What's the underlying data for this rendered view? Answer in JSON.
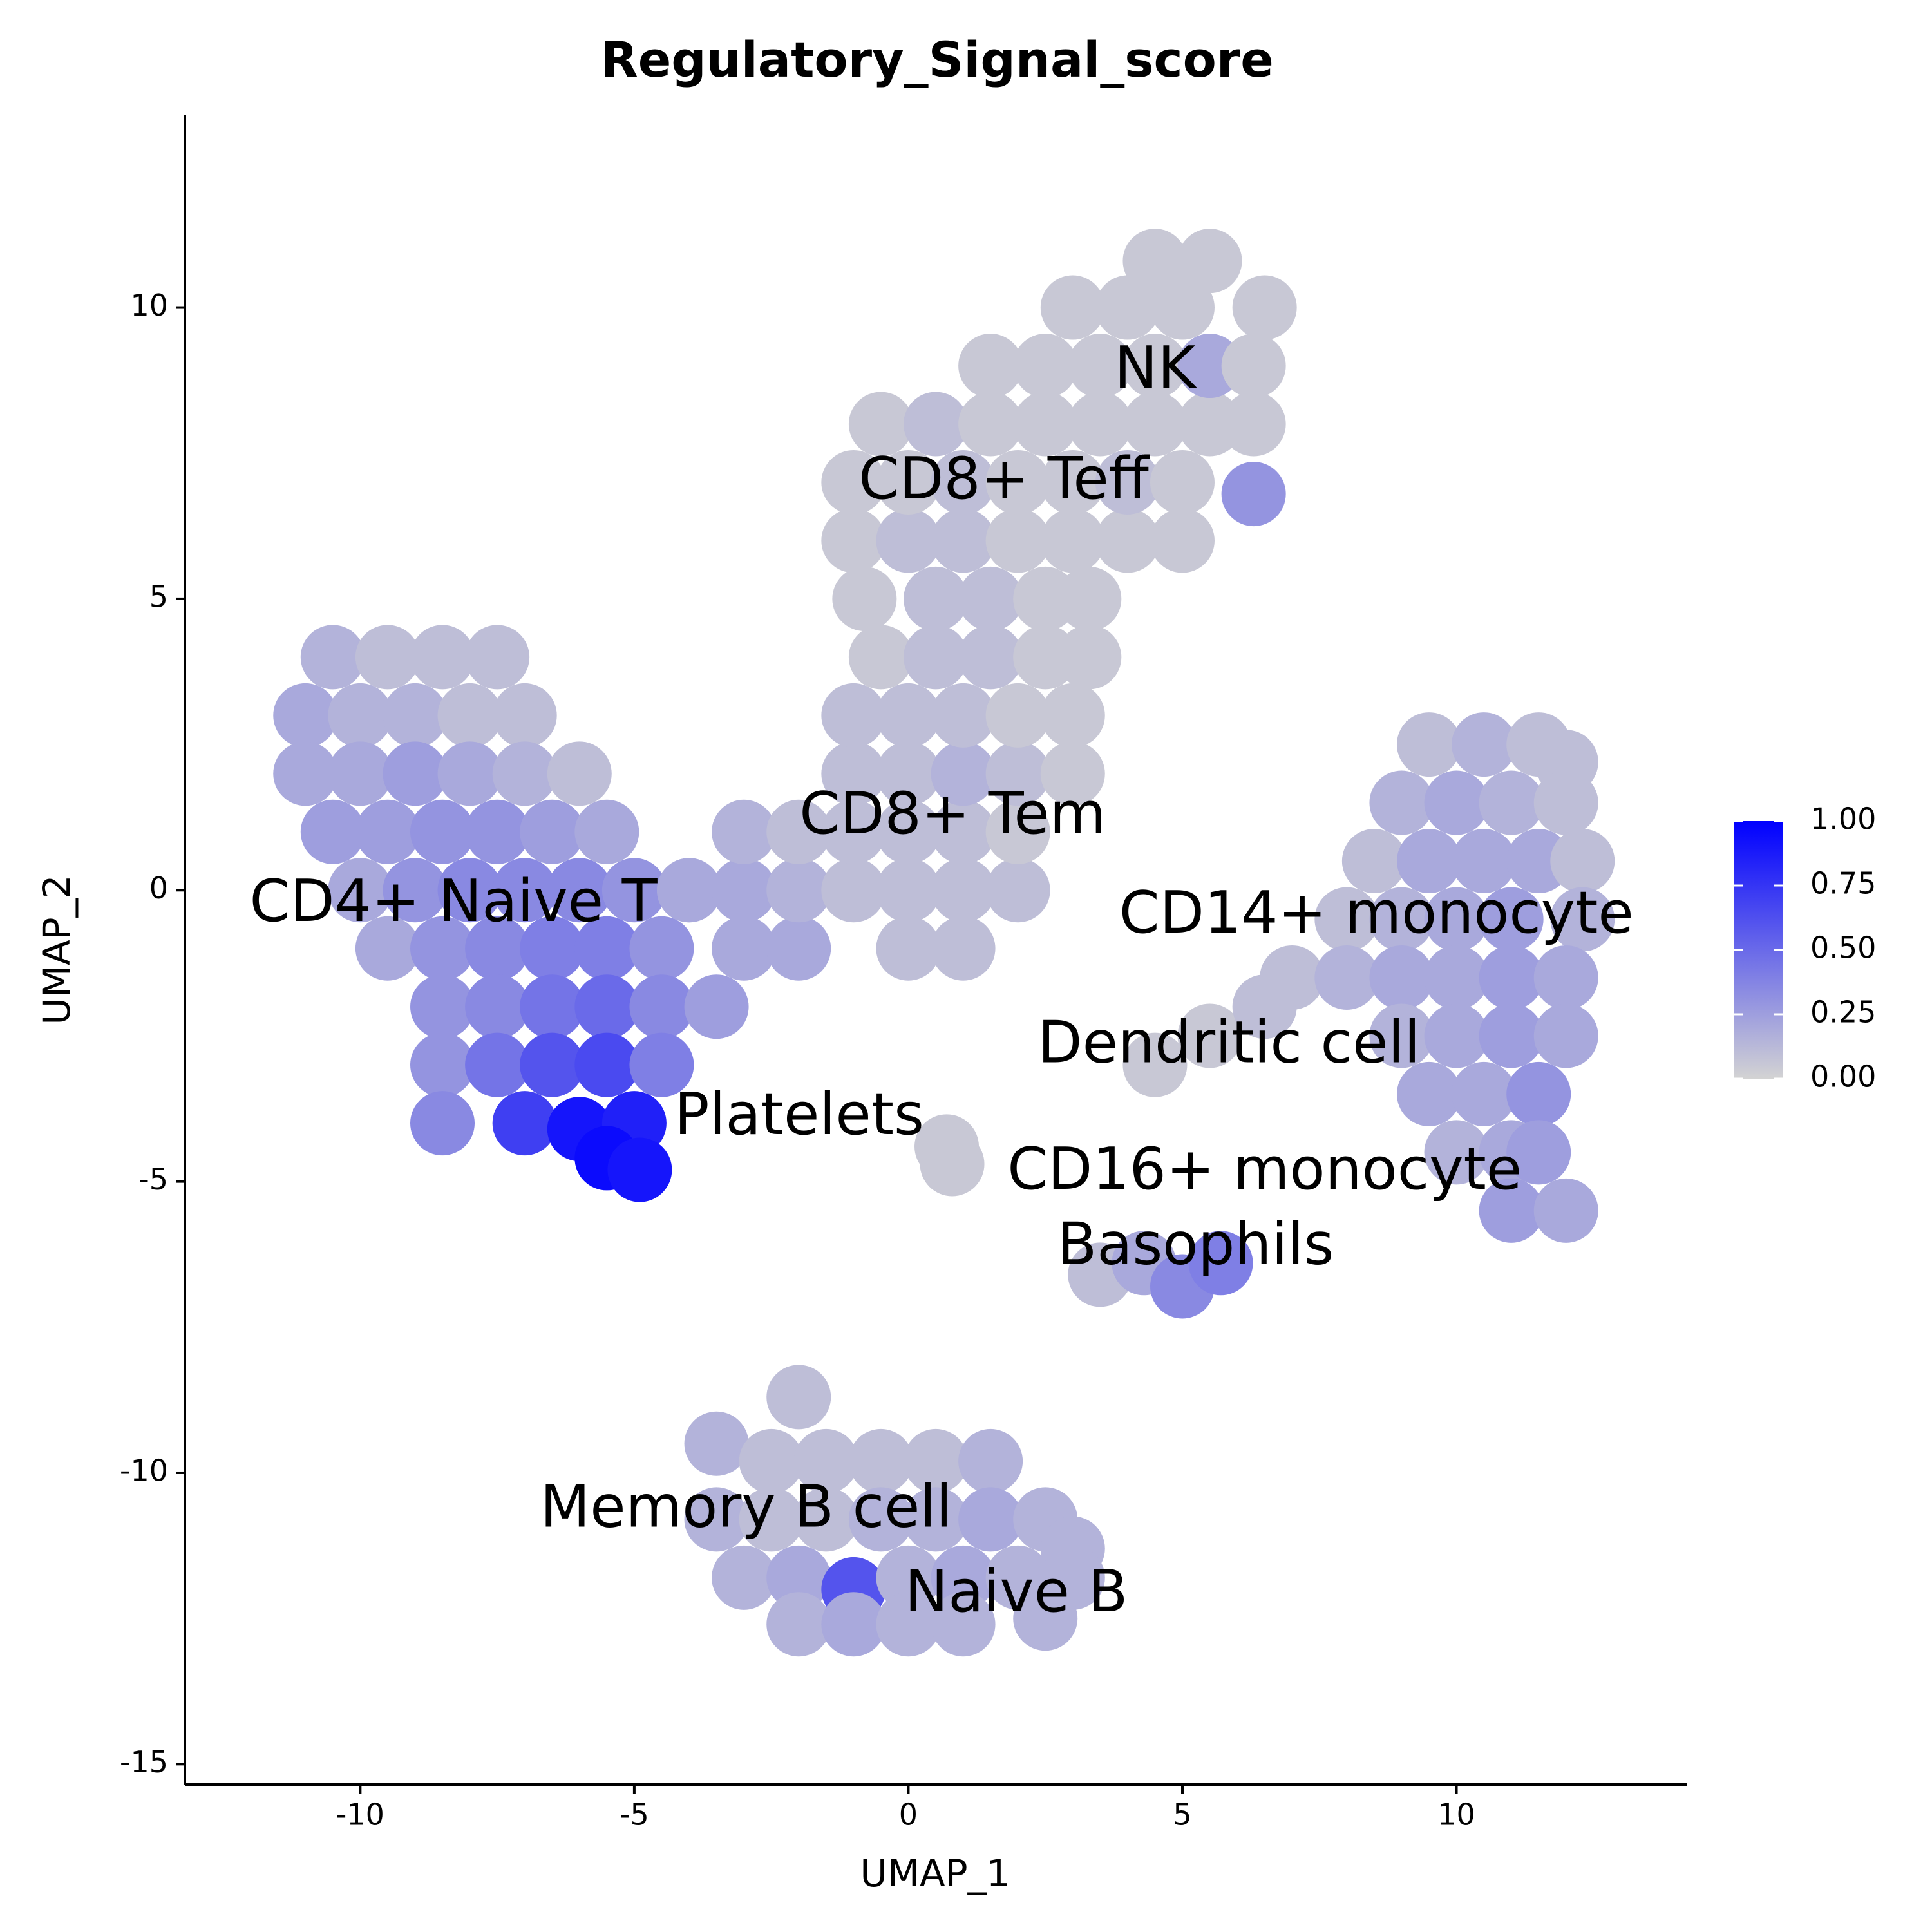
{
  "chart_data": {
    "type": "scatter",
    "title": "Regulatory_Signal_score",
    "x_label": "UMAP_1",
    "y_label": "UMAP_2",
    "xlim": [
      -13.2,
      14.2
    ],
    "ylim": [
      -15.35,
      13.3
    ],
    "xticks": [
      -10,
      -5,
      0,
      5,
      10
    ],
    "yticks": [
      -15,
      -10,
      -5,
      0,
      5,
      10
    ],
    "x": [
      -10.5,
      -9.5,
      -8.5,
      -7.5,
      -11,
      -10,
      -9,
      -8,
      -7,
      -11,
      -10,
      -9,
      -8,
      -7,
      -6,
      -10.5,
      -9.5,
      -8.5,
      -7.5,
      -6.5,
      -5.5,
      -10,
      -9,
      -8,
      -7,
      -6,
      -5,
      -4,
      -9.5,
      -8.5,
      -7.5,
      -6.5,
      -5.5,
      -4.5,
      -8.5,
      -7.5,
      -6.5,
      -5.5,
      -4.5,
      -8.5,
      -7.5,
      -6.5,
      -5.5,
      -4.5,
      -8.5,
      -7,
      -6,
      -5,
      -5.5,
      -4.9,
      -3.5,
      -3,
      -2,
      0,
      1,
      -4,
      -3,
      -2,
      -1,
      0,
      1,
      2,
      -3,
      -2,
      -1,
      0,
      1,
      2,
      -1,
      0,
      1,
      2,
      3,
      -1,
      0,
      1,
      2,
      3,
      -0.5,
      0.5,
      1.5,
      2.5,
      3.3,
      -0.8,
      0.5,
      1.5,
      2.5,
      3.3,
      -1,
      0,
      1,
      2,
      3,
      4,
      5,
      -1,
      0,
      1,
      2,
      3,
      4,
      5,
      6.3,
      -0.5,
      0.5,
      1.5,
      2.5,
      3.5,
      4.5,
      5.5,
      6.3,
      1.5,
      2.5,
      3.5,
      4.5,
      5.5,
      6.3,
      3,
      4,
      5,
      6.5,
      4.5,
      5.5,
      9.5,
      10.5,
      11.5,
      12,
      9,
      10,
      11,
      12,
      8.5,
      9.5,
      10.5,
      11.5,
      12.3,
      8,
      9,
      10,
      11,
      12.3,
      7,
      8,
      9,
      10,
      11,
      12,
      4.5,
      5.5,
      6.5,
      9,
      10,
      11,
      12,
      9.5,
      10.5,
      11.5,
      10,
      11,
      11.5,
      11,
      12,
      3.5,
      4.3,
      5,
      5.7,
      0.7,
      0.8,
      -2,
      -3.5,
      -2.5,
      -1.5,
      -0.5,
      0.5,
      1.5,
      -3.5,
      -2.5,
      -1.5,
      -0.5,
      0.5,
      1.5,
      2.5,
      3,
      -3,
      -2,
      -1,
      0,
      1,
      2,
      3,
      -2,
      -1,
      0,
      1,
      2.5
    ],
    "y": [
      4,
      4,
      4,
      4,
      3,
      3,
      3,
      3,
      3,
      2,
      2,
      2,
      2,
      2,
      2,
      1,
      1,
      1,
      1,
      1,
      1,
      0,
      0,
      0,
      0,
      0,
      0,
      0,
      -1,
      -1,
      -1,
      -1,
      -1,
      -1,
      -2,
      -2,
      -2,
      -2,
      -2,
      -3,
      -3,
      -3,
      -3,
      -3,
      -4,
      -4,
      -4.1,
      -4,
      -4.6,
      -4.8,
      -2,
      -1,
      -1,
      -1,
      -1,
      0,
      0,
      0,
      0,
      0,
      0,
      0,
      1,
      1,
      1,
      1,
      1,
      1,
      2,
      2,
      2,
      2,
      2,
      3,
      3,
      3,
      3,
      3,
      4,
      4,
      4,
      4,
      4,
      5,
      5,
      5,
      5,
      5,
      6,
      6,
      6,
      6,
      6,
      6,
      6,
      7,
      7,
      7,
      7,
      7,
      7,
      7,
      6.8,
      8,
      8,
      8,
      8,
      8,
      8,
      8,
      8,
      9,
      9,
      9,
      9,
      9,
      9,
      10,
      10,
      10,
      10,
      10.8,
      10.8,
      2.5,
      2.5,
      2.5,
      2.2,
      1.5,
      1.5,
      1.5,
      1.5,
      0.5,
      0.5,
      0.5,
      0.5,
      0.5,
      -0.5,
      -0.5,
      -0.5,
      -0.5,
      -0.5,
      -1.5,
      -1.5,
      -1.5,
      -1.5,
      -1.5,
      -1.5,
      -3,
      -2.5,
      -2,
      -2.5,
      -2.5,
      -2.5,
      -2.5,
      -3.5,
      -3.5,
      -3.5,
      -4.5,
      -4.5,
      -4.5,
      -5.5,
      -5.5,
      -6.6,
      -6.4,
      -6.8,
      -6.4,
      -4.4,
      -4.7,
      -8.7,
      -9.5,
      -9.8,
      -9.8,
      -9.8,
      -9.8,
      -9.8,
      -10.8,
      -10.8,
      -10.8,
      -10.8,
      -10.8,
      -10.8,
      -10.8,
      -11.3,
      -11.8,
      -11.8,
      -12,
      -11.8,
      -11.8,
      -11.8,
      -11.8,
      -12.6,
      -12.6,
      -12.6,
      -12.6,
      -12.5
    ],
    "values": [
      0.15,
      0.1,
      0.1,
      0.1,
      0.2,
      0.15,
      0.15,
      0.1,
      0.1,
      0.2,
      0.2,
      0.25,
      0.2,
      0.15,
      0.1,
      0.25,
      0.25,
      0.3,
      0.3,
      0.25,
      0.2,
      0.2,
      0.3,
      0.35,
      0.35,
      0.35,
      0.3,
      0.2,
      0.2,
      0.3,
      0.35,
      0.4,
      0.4,
      0.3,
      0.3,
      0.35,
      0.45,
      0.5,
      0.35,
      0.3,
      0.45,
      0.6,
      0.65,
      0.4,
      0.35,
      0.7,
      0.9,
      0.85,
      0.95,
      0.9,
      0.25,
      0.2,
      0.2,
      0.1,
      0.1,
      0.2,
      0.2,
      0.15,
      0.1,
      0.1,
      0.1,
      0.1,
      0.15,
      0.1,
      0.1,
      0.1,
      0.1,
      0.05,
      0.1,
      0.1,
      0.15,
      0.1,
      0.05,
      0.1,
      0.1,
      0.1,
      0.05,
      0.05,
      0.05,
      0.1,
      0.1,
      0.05,
      0.05,
      0.05,
      0.1,
      0.1,
      0.05,
      0.05,
      0.05,
      0.1,
      0.1,
      0.05,
      0.05,
      0.05,
      0.05,
      0.05,
      0.05,
      0.1,
      0.05,
      0.05,
      0.1,
      0.05,
      0.3,
      0.05,
      0.1,
      0.05,
      0.05,
      0.05,
      0.05,
      0.05,
      0.05,
      0.05,
      0.05,
      0.05,
      0.05,
      0.2,
      0.05,
      0.05,
      0.05,
      0.05,
      0.05,
      0.05,
      0.05,
      0.1,
      0.15,
      0.1,
      0.1,
      0.15,
      0.2,
      0.15,
      0.1,
      0.1,
      0.2,
      0.2,
      0.2,
      0.1,
      0.1,
      0.15,
      0.2,
      0.25,
      0.15,
      0.1,
      0.15,
      0.2,
      0.2,
      0.25,
      0.2,
      0.05,
      0.05,
      0.1,
      0.15,
      0.2,
      0.25,
      0.2,
      0.2,
      0.2,
      0.3,
      0.15,
      0.2,
      0.25,
      0.25,
      0.2,
      0.1,
      0.2,
      0.35,
      0.4,
      0.05,
      0.05,
      0.1,
      0.15,
      0.1,
      0.1,
      0.1,
      0.1,
      0.15,
      0.15,
      0.1,
      0.1,
      0.15,
      0.15,
      0.2,
      0.15,
      0.15,
      0.15,
      0.2,
      0.6,
      0.15,
      0.2,
      0.15,
      0.15,
      0.15,
      0.2,
      0.15,
      0.15,
      0.15
    ],
    "color_scale": {
      "low": "#d3d3d3",
      "high": "#0000ff",
      "lim": [
        0,
        1
      ],
      "ticks": [
        {
          "value": 0,
          "label": "0.00"
        },
        {
          "value": 0.25,
          "label": "0.25"
        },
        {
          "value": 0.5,
          "label": "0.50"
        },
        {
          "value": 0.75,
          "label": "0.75"
        },
        {
          "value": 1,
          "label": "1.00"
        }
      ]
    },
    "labels": [
      {
        "text": "NK",
        "x": 4.5,
        "y": 8.9
      },
      {
        "text": "CD8+ Teff",
        "x": 1.74,
        "y": 7.0
      },
      {
        "text": "CD8+ Tem",
        "x": 0.81,
        "y": 1.25
      },
      {
        "text": "CD4+ Naive T",
        "x": -8.3,
        "y": -0.25
      },
      {
        "text": "CD14+ monocyte",
        "x": 8.54,
        "y": -0.45
      },
      {
        "text": "Dendritic cell",
        "x": 5.85,
        "y": -2.68
      },
      {
        "text": "Platelets",
        "x": -1.99,
        "y": -3.91
      },
      {
        "text": "CD16+ monocyte",
        "x": 6.5,
        "y": -4.85
      },
      {
        "text": "Basophils",
        "x": 5.24,
        "y": -6.14
      },
      {
        "text": "Memory B cell",
        "x": -2.96,
        "y": -10.65
      },
      {
        "text": "Naive B",
        "x": 1.97,
        "y": -12.1
      }
    ]
  }
}
